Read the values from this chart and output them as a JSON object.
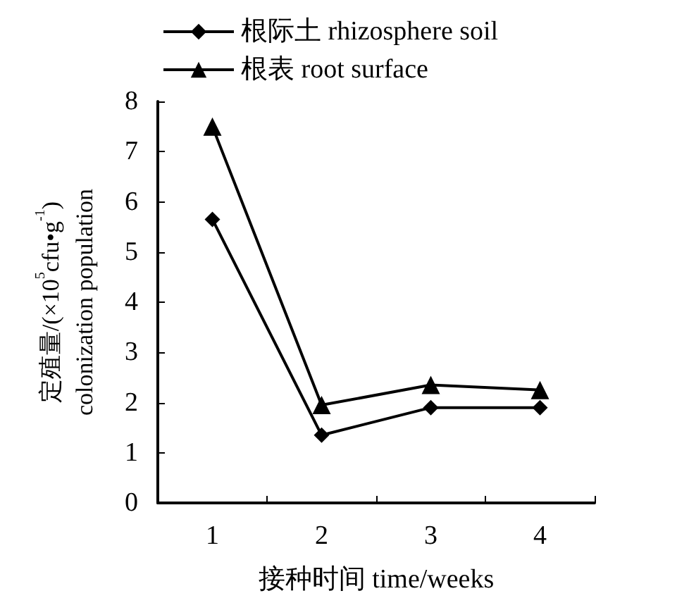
{
  "chart_data": {
    "type": "line",
    "xlabel": "接种时间 time/weeks",
    "ylabel": "定殖量/(×10$^{5}$cfu•g$^{-1}$)\ncolonization population",
    "categories": [
      "1",
      "2",
      "3",
      "4"
    ],
    "series": [
      {
        "name": "根际土 rhizosphere soil",
        "color": "#000000",
        "marker": "diamond",
        "values": [
          5.65,
          1.35,
          1.9,
          1.9
        ]
      },
      {
        "name": "根表 root surface",
        "color": "#000000",
        "marker": "triangle",
        "values": [
          7.5,
          1.95,
          2.35,
          2.25
        ]
      }
    ],
    "ylim": [
      0,
      8
    ],
    "yticks": [
      0,
      1,
      2,
      3,
      4,
      5,
      6,
      7,
      8
    ],
    "grid": false,
    "legend": "top",
    "line_style": "solid"
  }
}
